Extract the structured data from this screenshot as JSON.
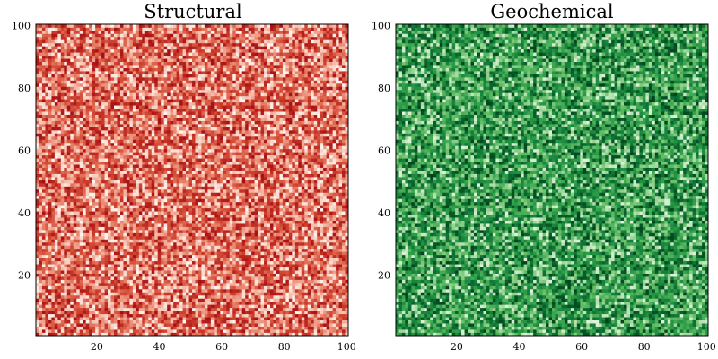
{
  "chart_data": [
    {
      "type": "heatmap",
      "title": "Structural",
      "xlabel": "",
      "ylabel": "",
      "xlim": [
        1,
        100
      ],
      "ylim": [
        1,
        100
      ],
      "grid_size": [
        100,
        100
      ],
      "xticks": [
        20,
        40,
        60,
        80,
        100
      ],
      "yticks": [
        20,
        40,
        60,
        80,
        100
      ],
      "value_range": [
        0,
        1
      ],
      "colorscale": [
        "#a50f15",
        "#cb3a2a",
        "#e06a52",
        "#f4b5a2",
        "#fff5f0"
      ],
      "grid": false,
      "legend": "none",
      "note": "cells are spatially uncorrelated random values in value_range"
    },
    {
      "type": "heatmap",
      "title": "Geochemical",
      "xlabel": "",
      "ylabel": "",
      "xlim": [
        1,
        100
      ],
      "ylim": [
        1,
        100
      ],
      "grid_size": [
        100,
        100
      ],
      "xticks": [
        20,
        40,
        60,
        80,
        100
      ],
      "yticks": [
        20,
        40,
        60,
        80,
        100
      ],
      "value_range": [
        0,
        1
      ],
      "colorscale": [
        "#00441b",
        "#117a3a",
        "#2e9e48",
        "#6cc06a",
        "#e0f3db"
      ],
      "grid": false,
      "legend": "none",
      "note": "cells are spatially uncorrelated random values in value_range"
    }
  ]
}
